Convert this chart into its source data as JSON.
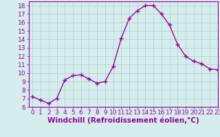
{
  "x": [
    0,
    1,
    2,
    3,
    4,
    5,
    6,
    7,
    8,
    9,
    10,
    11,
    12,
    13,
    14,
    15,
    16,
    17,
    18,
    19,
    20,
    21,
    22,
    23
  ],
  "y": [
    7.2,
    6.8,
    6.4,
    7.0,
    9.2,
    9.7,
    9.8,
    9.3,
    8.8,
    9.0,
    10.8,
    14.1,
    16.5,
    17.4,
    18.0,
    18.0,
    17.0,
    15.7,
    13.4,
    12.0,
    11.4,
    11.1,
    10.5,
    10.4
  ],
  "line_color": "#990099",
  "marker": "+",
  "marker_size": 4,
  "bg_color": "#d5eeed",
  "grid_color": "#b0cece",
  "xlabel": "Windchill (Refroidissement éolien,°C)",
  "xlim": [
    -0.5,
    23
  ],
  "ylim": [
    6,
    18.5
  ],
  "yticks": [
    6,
    7,
    8,
    9,
    10,
    11,
    12,
    13,
    14,
    15,
    16,
    17,
    18
  ],
  "xticks": [
    0,
    1,
    2,
    3,
    4,
    5,
    6,
    7,
    8,
    9,
    10,
    11,
    12,
    13,
    14,
    15,
    16,
    17,
    18,
    19,
    20,
    21,
    22,
    23
  ],
  "tick_label_fontsize": 6.5,
  "xlabel_fontsize": 7.5,
  "xlabel_fontweight": "bold",
  "linewidth": 1.0,
  "markeredgewidth": 1.0
}
